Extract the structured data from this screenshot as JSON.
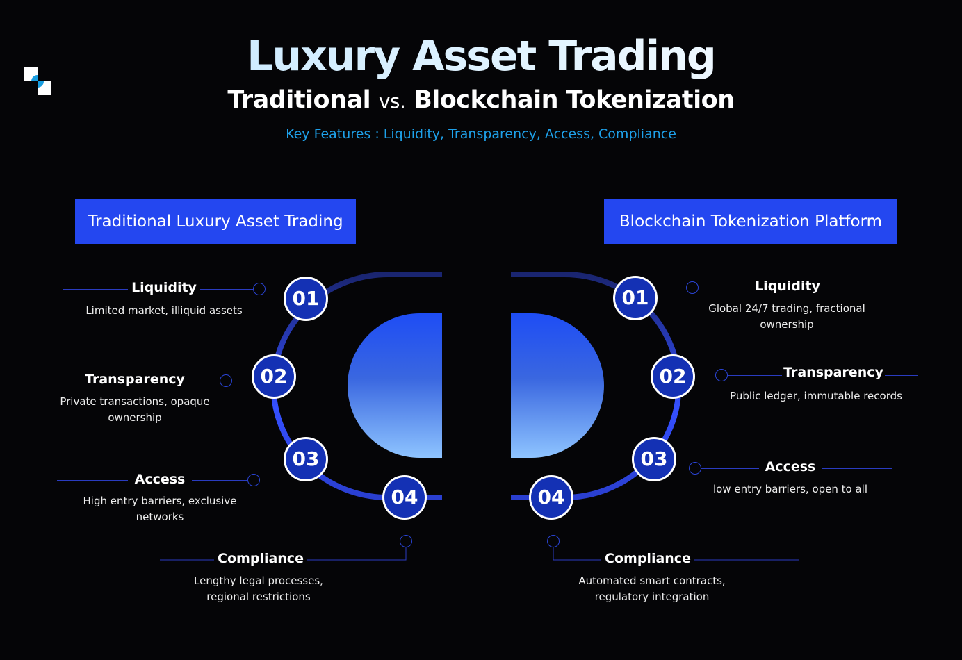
{
  "logo": "logo-icon",
  "title": "Luxury Asset Trading",
  "subtitle": {
    "left": "Traditional",
    "vs": "vs.",
    "right": "Blockchain Tokenization"
  },
  "key_features": "Key Features : Liquidity, Transparency, Access, Compliance",
  "colors": {
    "accent": "#2447f0",
    "number_fill": "#1431b4",
    "features_text": "#1ea1ea"
  },
  "traditional": {
    "header": "Traditional Luxury Asset Trading",
    "items": [
      {
        "num": "01",
        "title": "Liquidity",
        "desc": "Limited market, illiquid assets"
      },
      {
        "num": "02",
        "title": "Transparency",
        "desc": "Private transactions, opaque ownership"
      },
      {
        "num": "03",
        "title": "Access",
        "desc": "High entry barriers, exclusive networks"
      },
      {
        "num": "04",
        "title": "Compliance",
        "desc": "Lengthy legal processes, regional restrictions"
      }
    ]
  },
  "blockchain": {
    "header": "Blockchain Tokenization Platform",
    "items": [
      {
        "num": "01",
        "title": "Liquidity",
        "desc": "Global 24/7 trading, fractional ownership"
      },
      {
        "num": "02",
        "title": "Transparency",
        "desc": "Public ledger, immutable records"
      },
      {
        "num": "03",
        "title": "Access",
        "desc": "low entry barriers, open to all"
      },
      {
        "num": "04",
        "title": "Compliance",
        "desc": "Automated smart contracts, regulatory integration"
      }
    ]
  }
}
